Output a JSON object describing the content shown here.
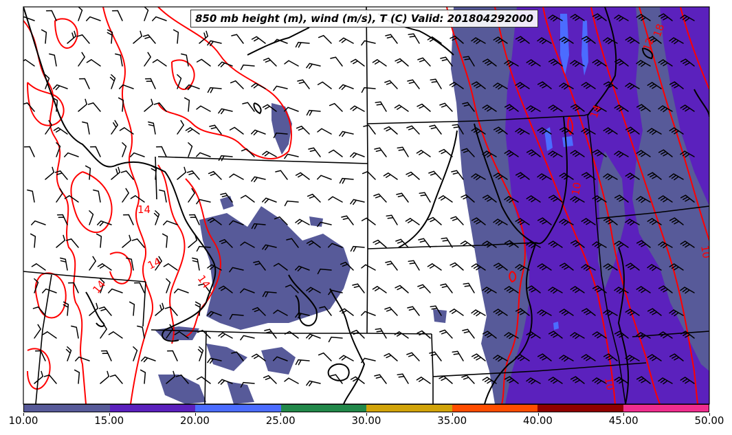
{
  "title": "850 mb height (m), wind (m/s), T (C) Valid: 201804292000",
  "contour_labels": [
    "14",
    "14",
    "14",
    "14",
    "14",
    "10",
    "12",
    "18",
    "10",
    "10"
  ],
  "colorbar": {
    "colors": [
      "#575a99",
      "#5b21bd",
      "#4b6cff",
      "#22884a",
      "#d1a30a",
      "#ff4d00",
      "#8f0000",
      "#ef2d8e"
    ],
    "ticks": [
      "10.00",
      "15.00",
      "20.00",
      "25.00",
      "30.00",
      "35.00",
      "40.00",
      "45.00",
      "50.00"
    ]
  },
  "style": {
    "contour_color": "#ff0000",
    "border_color": "#000000",
    "shade_low": "#575a99",
    "shade_mid": "#5b21bd",
    "shade_high": "#4b6cff"
  }
}
